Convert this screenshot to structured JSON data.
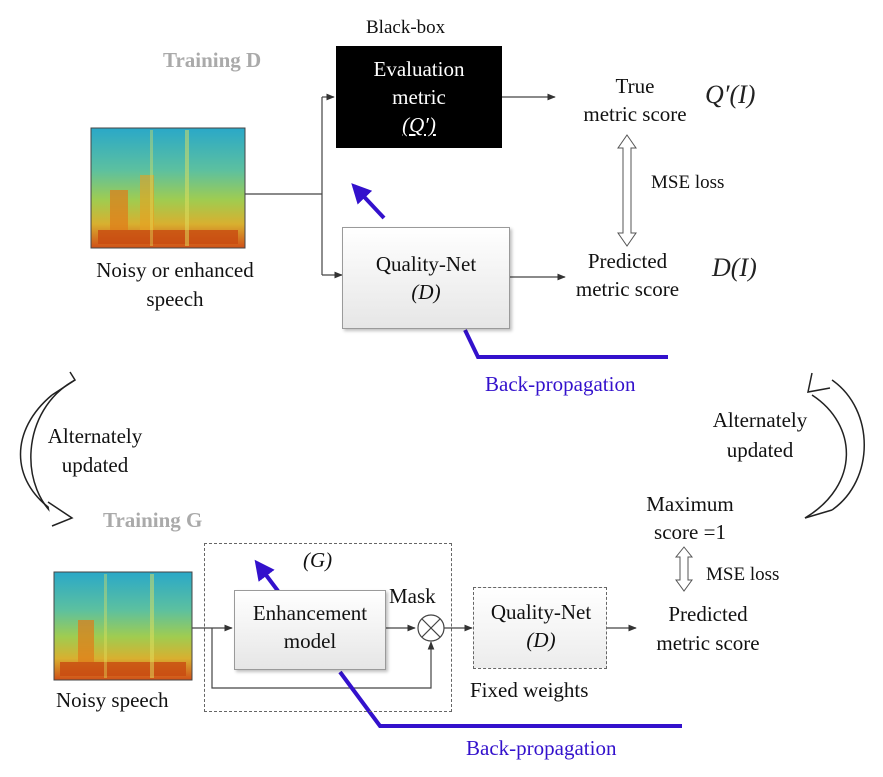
{
  "top": {
    "section_title": "Training D",
    "blackbox_label": "Black-box",
    "eval_metric_line1": "Evaluation",
    "eval_metric_line2": "metric",
    "eval_metric_line3": "(Q′)",
    "true_score_line1": "True",
    "true_score_line2": "metric score",
    "true_score_math": "Q′(I)",
    "mse_loss": "MSE loss",
    "quality_net_line1": "Quality-Net",
    "quality_net_line2": "(D)",
    "predicted_line1": "Predicted",
    "predicted_line2": "metric score",
    "predicted_math": "D(I)",
    "input_line1": "Noisy or enhanced",
    "input_line2": "speech",
    "backprop": "Back-propagation"
  },
  "middle": {
    "left_alt_line1": "Alternately",
    "left_alt_line2": "updated",
    "right_alt_line1": "Alternately",
    "right_alt_line2": "updated"
  },
  "bottom": {
    "section_title": "Training G",
    "g_label": "(G)",
    "enhancement_line1": "Enhancement",
    "enhancement_line2": "model",
    "mask_label": "Mask",
    "quality_net_line1": "Quality-Net",
    "quality_net_line2": "(D)",
    "fixed_weights": "Fixed weights",
    "max_score_line1": "Maximum",
    "max_score_line2": "score =1",
    "mse_loss": "MSE loss",
    "predicted_line1": "Predicted",
    "predicted_line2": "metric score",
    "input_label": "Noisy speech",
    "backprop": "Back-propagation"
  },
  "colors": {
    "backprop_arrow": "#3311cc",
    "section_title": "#aaaaaa",
    "blackbox_fill": "#000000"
  }
}
